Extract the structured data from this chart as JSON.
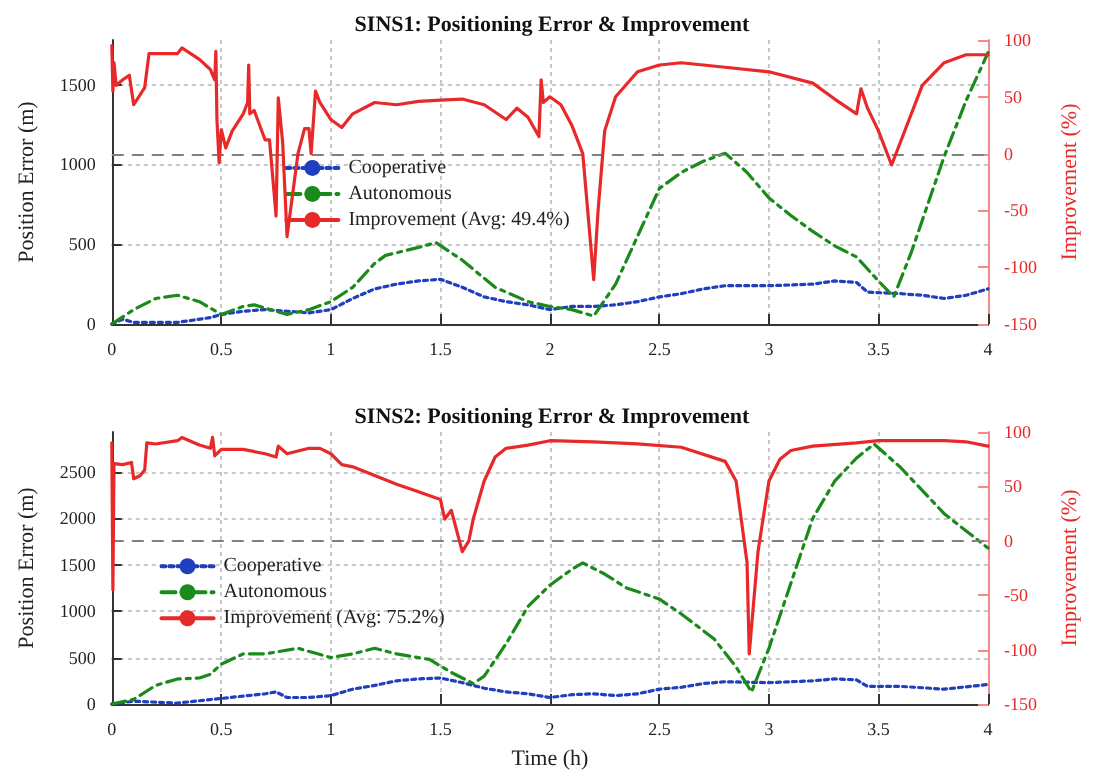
{
  "chart_data": [
    {
      "type": "line",
      "title": "SINS1: Positioning Error & Improvement",
      "ylabel": "Position Error (m)",
      "y2label": "Improvement (%)",
      "xlim": [
        0,
        4
      ],
      "xticks": [
        0,
        0.5,
        1,
        1.5,
        2,
        2.5,
        3,
        3.5,
        4
      ],
      "ylim": [
        0,
        1780
      ],
      "yticks": [
        0,
        500,
        1000,
        1500
      ],
      "y2lim": [
        -150,
        100
      ],
      "y2ticks": [
        -150,
        -100,
        -50,
        0,
        50,
        100
      ],
      "grid": true,
      "legend": "center",
      "marker": "none",
      "ref_lines": [
        {
          "axis": "y2",
          "value": 0,
          "color": "#808080",
          "line_style": "dashed"
        }
      ],
      "series": [
        {
          "name": "Cooperative",
          "color": "#1f3fbf",
          "line_style": "dotted",
          "x": [
            0,
            0.05,
            0.1,
            0.3,
            0.45,
            0.5,
            0.6,
            0.7,
            0.8,
            0.9,
            1.0,
            1.1,
            1.2,
            1.3,
            1.4,
            1.5,
            1.6,
            1.7,
            1.8,
            1.9,
            2.0,
            2.1,
            2.2,
            2.3,
            2.4,
            2.5,
            2.6,
            2.7,
            2.8,
            3.0,
            3.2,
            3.3,
            3.4,
            3.45,
            3.6,
            3.7,
            3.8,
            3.9,
            4.0
          ],
          "values": [
            0,
            30,
            10,
            10,
            40,
            60,
            80,
            90,
            80,
            70,
            90,
            160,
            220,
            250,
            270,
            280,
            230,
            170,
            140,
            120,
            90,
            110,
            110,
            120,
            140,
            170,
            190,
            220,
            240,
            240,
            250,
            270,
            260,
            200,
            190,
            180,
            160,
            180,
            220
          ]
        },
        {
          "name": "Autonomous",
          "color": "#1a8a1a",
          "line_style": "dashed",
          "x": [
            0,
            0.1,
            0.2,
            0.3,
            0.4,
            0.5,
            0.6,
            0.65,
            0.75,
            0.8,
            0.9,
            1.0,
            1.1,
            1.2,
            1.25,
            1.4,
            1.48,
            1.6,
            1.75,
            1.9,
            2.0,
            2.1,
            2.2,
            2.3,
            2.4,
            2.5,
            2.6,
            2.7,
            2.8,
            2.9,
            3.0,
            3.1,
            3.2,
            3.3,
            3.4,
            3.5,
            3.57,
            3.65,
            3.75,
            3.8,
            3.9,
            4.0
          ],
          "values": [
            0,
            90,
            160,
            180,
            140,
            60,
            110,
            120,
            80,
            60,
            90,
            140,
            230,
            380,
            430,
            480,
            510,
            400,
            230,
            140,
            110,
            90,
            50,
            250,
            550,
            850,
            950,
            1020,
            1070,
            950,
            790,
            680,
            580,
            490,
            420,
            270,
            170,
            450,
            850,
            1050,
            1400,
            1700
          ]
        },
        {
          "name": "Improvement (Avg: 49.4%)",
          "color": "#e8292a",
          "line_style": "solid",
          "axis": "y2",
          "x": [
            0,
            0.005,
            0.01,
            0.02,
            0.05,
            0.08,
            0.1,
            0.15,
            0.17,
            0.3,
            0.32,
            0.4,
            0.45,
            0.47,
            0.475,
            0.48,
            0.49,
            0.5,
            0.52,
            0.55,
            0.6,
            0.62,
            0.625,
            0.63,
            0.65,
            0.7,
            0.72,
            0.75,
            0.76,
            0.78,
            0.8,
            0.85,
            0.88,
            0.9,
            0.91,
            0.93,
            0.95,
            1.0,
            1.05,
            1.1,
            1.2,
            1.3,
            1.4,
            1.5,
            1.6,
            1.7,
            1.8,
            1.85,
            1.9,
            1.95,
            1.96,
            1.97,
            2.0,
            2.05,
            2.1,
            2.15,
            2.2,
            2.22,
            2.25,
            2.3,
            2.4,
            2.5,
            2.6,
            2.8,
            3.0,
            3.2,
            3.3,
            3.4,
            3.42,
            3.45,
            3.5,
            3.56,
            3.6,
            3.7,
            3.8,
            3.9,
            4.0
          ],
          "values": [
            95,
            55,
            80,
            60,
            65,
            69,
            43,
            58,
            88,
            88,
            93,
            83,
            74,
            65,
            90,
            30,
            -8,
            21,
            5,
            20,
            35,
            45,
            78,
            35,
            38,
            12,
            12,
            -55,
            49,
            10,
            -73,
            0,
            22,
            22,
            0,
            55,
            45,
            30,
            23,
            35,
            45,
            43,
            46,
            47,
            48,
            43,
            30,
            40,
            32,
            15,
            65,
            45,
            50,
            43,
            25,
            0,
            -111,
            -50,
            20,
            50,
            72,
            78,
            80,
            76,
            72,
            62,
            48,
            35,
            57,
            40,
            20,
            -10,
            10,
            60,
            80,
            87,
            87
          ]
        }
      ]
    },
    {
      "type": "line",
      "title": "SINS2: Positioning Error & Improvement",
      "xlabel": "Time (h)",
      "ylabel": "Position Error (m)",
      "y2label": "Improvement (%)",
      "xlim": [
        0,
        4
      ],
      "xticks": [
        0,
        0.5,
        1,
        1.5,
        2,
        2.5,
        3,
        3.5,
        4
      ],
      "ylim": [
        0,
        2930
      ],
      "yticks": [
        0,
        500,
        1000,
        1500,
        2000,
        2500
      ],
      "y2lim": [
        -150,
        100
      ],
      "y2ticks": [
        -150,
        -100,
        -50,
        0,
        50,
        100
      ],
      "grid": true,
      "legend": "left",
      "marker": "none",
      "ref_lines": [
        {
          "axis": "y2",
          "value": 0,
          "color": "#808080",
          "line_style": "dashed"
        }
      ],
      "series": [
        {
          "name": "Cooperative",
          "color": "#1f3fbf",
          "line_style": "dotted",
          "x": [
            0,
            0.1,
            0.3,
            0.5,
            0.7,
            0.75,
            0.8,
            0.9,
            1.0,
            1.1,
            1.2,
            1.3,
            1.4,
            1.5,
            1.6,
            1.7,
            1.8,
            1.9,
            2.0,
            2.1,
            2.2,
            2.3,
            2.4,
            2.5,
            2.6,
            2.7,
            2.8,
            3.0,
            3.2,
            3.3,
            3.4,
            3.45,
            3.6,
            3.8,
            4.0
          ],
          "values": [
            0,
            30,
            10,
            60,
            110,
            130,
            70,
            70,
            90,
            160,
            200,
            250,
            270,
            280,
            230,
            170,
            130,
            110,
            70,
            100,
            110,
            90,
            110,
            160,
            180,
            220,
            240,
            230,
            250,
            270,
            260,
            190,
            190,
            160,
            210
          ]
        },
        {
          "name": "Autonomous",
          "color": "#1a8a1a",
          "line_style": "dashed",
          "x": [
            0,
            0.1,
            0.2,
            0.3,
            0.4,
            0.45,
            0.5,
            0.6,
            0.7,
            0.85,
            1.0,
            1.1,
            1.2,
            1.3,
            1.45,
            1.55,
            1.65,
            1.7,
            1.8,
            1.9,
            2.0,
            2.1,
            2.15,
            2.25,
            2.35,
            2.5,
            2.6,
            2.75,
            2.85,
            2.92,
            3.0,
            3.1,
            3.2,
            3.3,
            3.4,
            3.48,
            3.6,
            3.8,
            4.0
          ],
          "values": [
            0,
            50,
            200,
            270,
            280,
            320,
            430,
            540,
            540,
            600,
            500,
            540,
            600,
            540,
            480,
            340,
            220,
            300,
            650,
            1050,
            1280,
            1450,
            1520,
            1400,
            1250,
            1130,
            970,
            700,
            400,
            130,
            600,
            1300,
            2000,
            2400,
            2650,
            2800,
            2550,
            2050,
            1680
          ]
        },
        {
          "name": "Improvement (Avg: 75.2%)",
          "color": "#e8292a",
          "line_style": "solid",
          "axis": "y2",
          "x": [
            0,
            0.005,
            0.01,
            0.05,
            0.09,
            0.1,
            0.13,
            0.15,
            0.16,
            0.2,
            0.3,
            0.32,
            0.4,
            0.45,
            0.46,
            0.47,
            0.5,
            0.6,
            0.7,
            0.75,
            0.76,
            0.8,
            0.9,
            0.95,
            1.0,
            1.05,
            1.1,
            1.2,
            1.3,
            1.4,
            1.5,
            1.52,
            1.55,
            1.6,
            1.63,
            1.65,
            1.7,
            1.75,
            1.8,
            1.9,
            2.0,
            2.2,
            2.4,
            2.6,
            2.8,
            2.85,
            2.9,
            2.91,
            2.95,
            3.0,
            3.05,
            3.1,
            3.2,
            3.4,
            3.5,
            3.8,
            3.9,
            4.0
          ],
          "values": [
            90,
            -45,
            71,
            70,
            72,
            57,
            60,
            65,
            90,
            89,
            92,
            95,
            88,
            85,
            95,
            78,
            84,
            84,
            80,
            77,
            87,
            80,
            85,
            85,
            80,
            70,
            68,
            60,
            52,
            45,
            38,
            20,
            28,
            -10,
            0,
            20,
            55,
            77,
            85,
            88,
            92,
            91,
            89,
            86,
            73,
            55,
            -20,
            -104,
            -10,
            55,
            75,
            83,
            87,
            90,
            92,
            92,
            91,
            87
          ]
        }
      ]
    }
  ]
}
